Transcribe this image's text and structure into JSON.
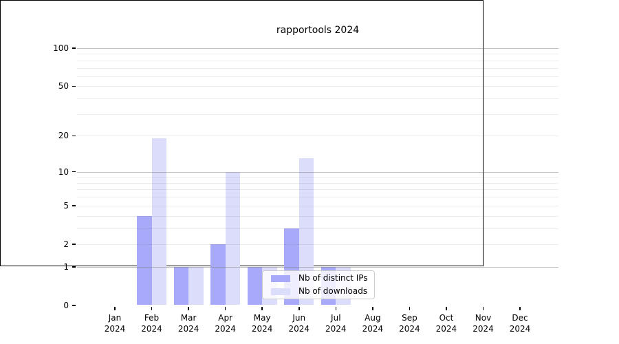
{
  "title": "rapportools 2024",
  "chart_data": {
    "type": "bar",
    "title": "rapportools 2024",
    "x_months": [
      "Jan",
      "Feb",
      "Mar",
      "Apr",
      "May",
      "Jun",
      "Jul",
      "Aug",
      "Sep",
      "Oct",
      "Nov",
      "Dec"
    ],
    "x_year": "2024",
    "categories": [
      "Jan 2024",
      "Feb 2024",
      "Mar 2024",
      "Apr 2024",
      "May 2024",
      "Jun 2024",
      "Jul 2024",
      "Aug 2024",
      "Sep 2024",
      "Oct 2024",
      "Nov 2024",
      "Dec 2024"
    ],
    "series": [
      {
        "name": "Nb of distinct IPs",
        "color": "#a9a9fa",
        "values": [
          0,
          4,
          1,
          2,
          1,
          3,
          1,
          0,
          0,
          0,
          0,
          0
        ]
      },
      {
        "name": "Nb of downloads",
        "color": "#dcdcfb",
        "values": [
          0,
          19,
          1,
          10,
          1,
          13,
          1,
          0,
          0,
          0,
          0,
          0
        ]
      }
    ],
    "y_scale": "symlog ln(1+v)",
    "y_ticks": [
      0,
      1,
      2,
      5,
      10,
      20,
      50,
      100
    ],
    "y_major_gridlines": [
      1,
      10,
      100
    ],
    "y_minor_gridlines": [
      2,
      3,
      4,
      5,
      6,
      7,
      8,
      9,
      20,
      30,
      40,
      50,
      60,
      70,
      80,
      90
    ],
    "ylim": [
      0,
      113
    ],
    "grid": true,
    "legend_position": "inside bottom-center"
  },
  "colors": {
    "bar_distinct_ips": "#a9a9fa",
    "bar_downloads": "#dcdcfb",
    "major_grid": "rgba(128,128,128,0.50)",
    "minor_grid": "rgba(60,60,60,0.09)",
    "axis": "#000000",
    "legend_border": "#cccccc"
  }
}
